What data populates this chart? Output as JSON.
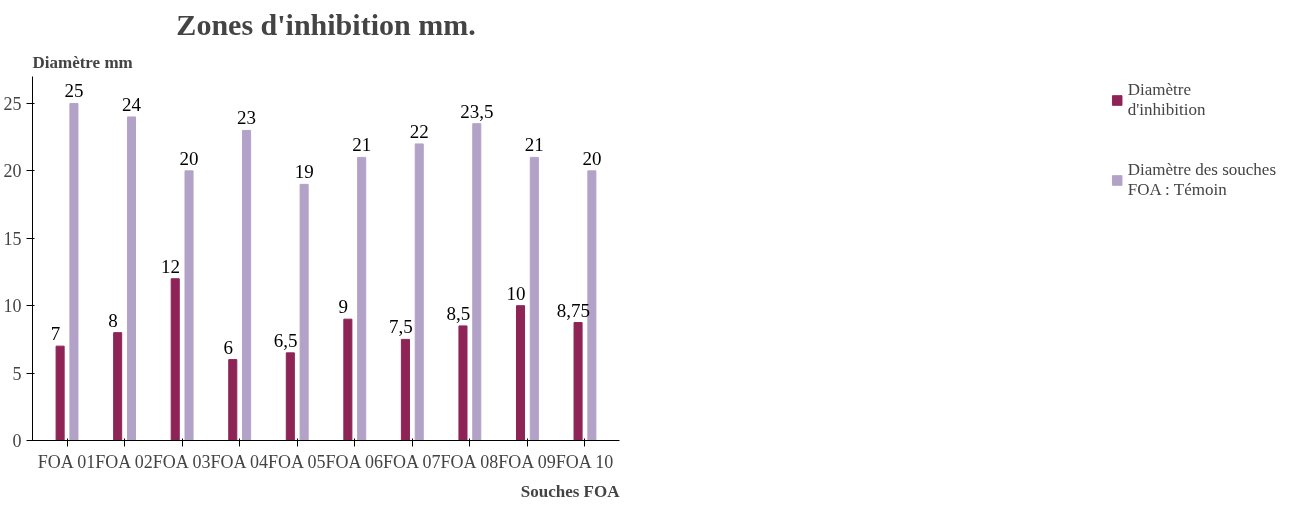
{
  "chart_data": {
    "type": "bar",
    "title": "Zones d'inhibition mm.",
    "ylabel": "Diamètre mm",
    "xlabel": "Souches FOA",
    "categories": [
      "FOA 01",
      "FOA 02",
      "FOA 03",
      "FOA 04",
      "FOA 05",
      "FOA 06",
      "FOA 07",
      "FOA 08",
      "FOA 09",
      "FOA 10"
    ],
    "series": [
      {
        "name": "Diamètre d'inhibition",
        "color": "#8e2456",
        "values": [
          7,
          8,
          12,
          6,
          6.5,
          9,
          7.5,
          8.5,
          10,
          8.75
        ],
        "value_labels": [
          "7",
          "8",
          "12",
          "6",
          "6,5",
          "9",
          "7,5",
          "8,5",
          "10",
          "8,75"
        ]
      },
      {
        "name": "Diamètre des souches FOA : Témoin",
        "color": "#b3a2c7",
        "values": [
          25,
          24,
          20,
          23,
          19,
          21,
          22,
          23.5,
          21,
          20
        ],
        "value_labels": [
          "25",
          "24",
          "20",
          "23",
          "19",
          "21",
          "22",
          "23,5",
          "21",
          "20"
        ]
      }
    ],
    "ylim": [
      0,
      27
    ],
    "yticks": [
      0,
      5,
      10,
      15,
      20,
      25
    ],
    "grid": false,
    "legend": "right"
  }
}
